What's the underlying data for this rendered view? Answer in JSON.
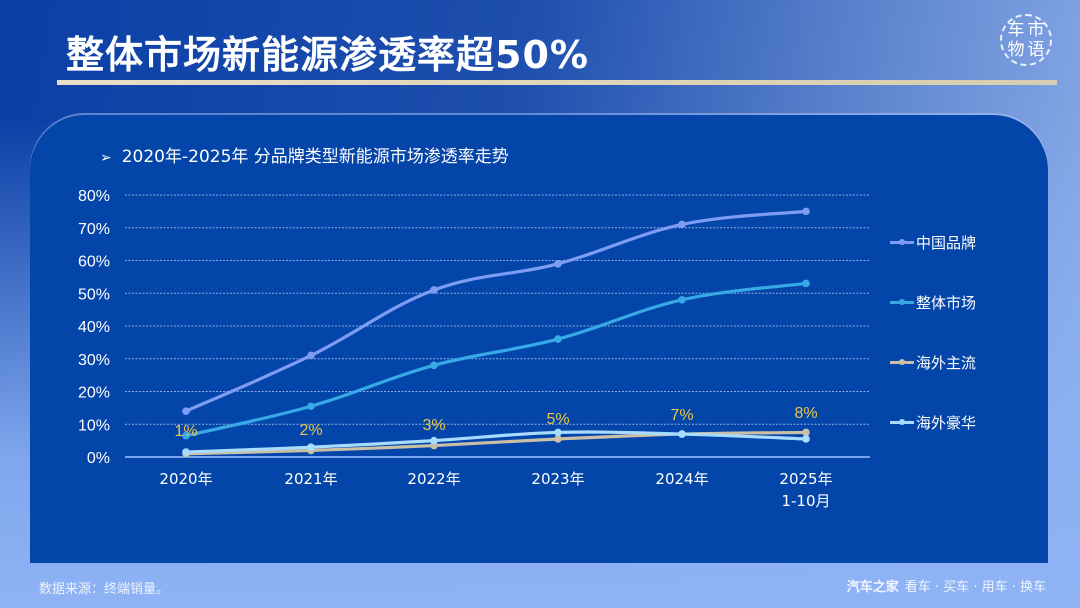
{
  "header": {
    "title": "整体市场新能源渗透率超50%",
    "logo_text": [
      "车",
      "市",
      "物",
      "语"
    ]
  },
  "subtitle": {
    "arrow": "➢",
    "text": "2020年-2025年 分品牌类型新能源市场渗透率走势"
  },
  "footer": {
    "source": "数据来源：终端销量。",
    "brand": "汽车之家",
    "slogan": "看车 · 买车 · 用车 · 换车"
  },
  "chart_data": {
    "type": "line",
    "title": "2020年-2025年 分品牌类型新能源市场渗透率走势",
    "xlabel": "",
    "ylabel": "",
    "categories": [
      "2020年",
      "2021年",
      "2022年",
      "2023年",
      "2024年",
      "2025年\n1-10月"
    ],
    "category_lines": [
      [
        "2020年"
      ],
      [
        "2021年"
      ],
      [
        "2022年"
      ],
      [
        "2023年"
      ],
      [
        "2024年"
      ],
      [
        "2025年",
        "1-10月"
      ]
    ],
    "yticks": [
      "0%",
      "10%",
      "20%",
      "30%",
      "40%",
      "50%",
      "60%",
      "70%",
      "80%"
    ],
    "ylim": [
      0,
      80
    ],
    "grid": true,
    "legend_position": "right",
    "series": [
      {
        "name": "中国品牌",
        "color": "#7f9cf5",
        "values": [
          14,
          31,
          51,
          59,
          71,
          75
        ]
      },
      {
        "name": "整体市场",
        "color": "#36a9e6",
        "values": [
          6.5,
          15.5,
          28,
          36,
          48,
          53
        ]
      },
      {
        "name": "海外主流",
        "color": "#c9c0a6",
        "values": [
          1,
          2,
          3.5,
          5.5,
          7,
          7.5
        ]
      },
      {
        "name": "海外豪华",
        "color": "#a8dcff",
        "values": [
          1.5,
          3,
          5,
          7.5,
          7,
          5.5
        ]
      }
    ],
    "annotations": {
      "color": "#e8c64a",
      "labels": [
        "1%",
        "2%",
        "3%",
        "5%",
        "7%",
        "8%"
      ]
    }
  }
}
